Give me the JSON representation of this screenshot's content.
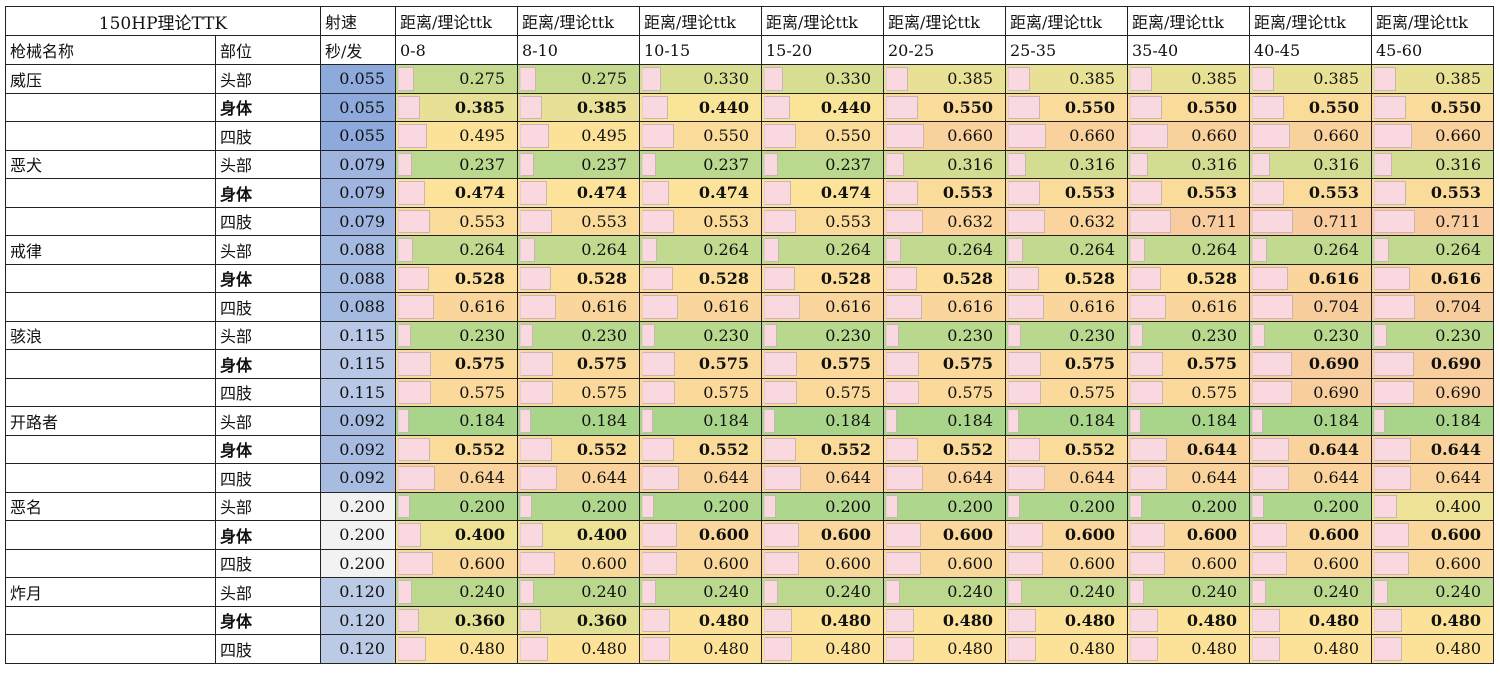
{
  "header": {
    "title": "150HP理论TTK",
    "speed_label": "射速",
    "speed_unit": "秒/发",
    "weapon_col": "枪械名称",
    "part_col": "部位",
    "dist_label": "距离/理论ttk",
    "ranges": [
      "0-8",
      "8-10",
      "10-15",
      "15-20",
      "20-25",
      "25-35",
      "35-40",
      "40-45",
      "45-60"
    ]
  },
  "colors": {
    "low": "#a9d58b",
    "mid": "#fde598",
    "high": "#f8cc9e",
    "speed_fast": "#8ea9db",
    "speed_slow": "#f2f2f2",
    "bar_fill": "#f9d9df"
  },
  "weapons": [
    {
      "name": "威压",
      "speed": "0.055",
      "rows": [
        {
          "part": "头部",
          "bold": false,
          "ttk": [
            "0.275",
            "0.275",
            "0.330",
            "0.330",
            "0.385",
            "0.385",
            "0.385",
            "0.385",
            "0.385"
          ]
        },
        {
          "part": "身体",
          "bold": true,
          "ttk": [
            "0.385",
            "0.385",
            "0.440",
            "0.440",
            "0.550",
            "0.550",
            "0.550",
            "0.550",
            "0.550"
          ]
        },
        {
          "part": "四肢",
          "bold": false,
          "ttk": [
            "0.495",
            "0.495",
            "0.550",
            "0.550",
            "0.660",
            "0.660",
            "0.660",
            "0.660",
            "0.660"
          ]
        }
      ]
    },
    {
      "name": "恶犬",
      "speed": "0.079",
      "rows": [
        {
          "part": "头部",
          "bold": false,
          "ttk": [
            "0.237",
            "0.237",
            "0.237",
            "0.237",
            "0.316",
            "0.316",
            "0.316",
            "0.316",
            "0.316"
          ]
        },
        {
          "part": "身体",
          "bold": true,
          "ttk": [
            "0.474",
            "0.474",
            "0.474",
            "0.474",
            "0.553",
            "0.553",
            "0.553",
            "0.553",
            "0.553"
          ]
        },
        {
          "part": "四肢",
          "bold": false,
          "ttk": [
            "0.553",
            "0.553",
            "0.553",
            "0.553",
            "0.632",
            "0.632",
            "0.711",
            "0.711",
            "0.711"
          ]
        }
      ]
    },
    {
      "name": "戒律",
      "speed": "0.088",
      "rows": [
        {
          "part": "头部",
          "bold": false,
          "ttk": [
            "0.264",
            "0.264",
            "0.264",
            "0.264",
            "0.264",
            "0.264",
            "0.264",
            "0.264",
            "0.264"
          ]
        },
        {
          "part": "身体",
          "bold": true,
          "ttk": [
            "0.528",
            "0.528",
            "0.528",
            "0.528",
            "0.528",
            "0.528",
            "0.528",
            "0.616",
            "0.616"
          ]
        },
        {
          "part": "四肢",
          "bold": false,
          "ttk": [
            "0.616",
            "0.616",
            "0.616",
            "0.616",
            "0.616",
            "0.616",
            "0.616",
            "0.704",
            "0.704"
          ]
        }
      ]
    },
    {
      "name": "骇浪",
      "speed": "0.115",
      "rows": [
        {
          "part": "头部",
          "bold": false,
          "ttk": [
            "0.230",
            "0.230",
            "0.230",
            "0.230",
            "0.230",
            "0.230",
            "0.230",
            "0.230",
            "0.230"
          ]
        },
        {
          "part": "身体",
          "bold": true,
          "ttk": [
            "0.575",
            "0.575",
            "0.575",
            "0.575",
            "0.575",
            "0.575",
            "0.575",
            "0.690",
            "0.690"
          ]
        },
        {
          "part": "四肢",
          "bold": false,
          "ttk": [
            "0.575",
            "0.575",
            "0.575",
            "0.575",
            "0.575",
            "0.575",
            "0.575",
            "0.690",
            "0.690"
          ]
        }
      ]
    },
    {
      "name": "开路者",
      "speed": "0.092",
      "rows": [
        {
          "part": "头部",
          "bold": false,
          "ttk": [
            "0.184",
            "0.184",
            "0.184",
            "0.184",
            "0.184",
            "0.184",
            "0.184",
            "0.184",
            "0.184"
          ]
        },
        {
          "part": "身体",
          "bold": true,
          "ttk": [
            "0.552",
            "0.552",
            "0.552",
            "0.552",
            "0.552",
            "0.552",
            "0.644",
            "0.644",
            "0.644"
          ]
        },
        {
          "part": "四肢",
          "bold": false,
          "ttk": [
            "0.644",
            "0.644",
            "0.644",
            "0.644",
            "0.644",
            "0.644",
            "0.644",
            "0.644",
            "0.644"
          ]
        }
      ]
    },
    {
      "name": "恶名",
      "speed": "0.200",
      "rows": [
        {
          "part": "头部",
          "bold": false,
          "ttk": [
            "0.200",
            "0.200",
            "0.200",
            "0.200",
            "0.200",
            "0.200",
            "0.200",
            "0.200",
            "0.400"
          ]
        },
        {
          "part": "身体",
          "bold": true,
          "ttk": [
            "0.400",
            "0.400",
            "0.600",
            "0.600",
            "0.600",
            "0.600",
            "0.600",
            "0.600",
            "0.600"
          ]
        },
        {
          "part": "四肢",
          "bold": false,
          "ttk": [
            "0.600",
            "0.600",
            "0.600",
            "0.600",
            "0.600",
            "0.600",
            "0.600",
            "0.600",
            "0.600"
          ]
        }
      ]
    },
    {
      "name": "炸月",
      "speed": "0.120",
      "rows": [
        {
          "part": "头部",
          "bold": false,
          "ttk": [
            "0.240",
            "0.240",
            "0.240",
            "0.240",
            "0.240",
            "0.240",
            "0.240",
            "0.240",
            "0.240"
          ]
        },
        {
          "part": "身体",
          "bold": true,
          "ttk": [
            "0.360",
            "0.360",
            "0.480",
            "0.480",
            "0.480",
            "0.480",
            "0.480",
            "0.480",
            "0.480"
          ]
        },
        {
          "part": "四肢",
          "bold": false,
          "ttk": [
            "0.480",
            "0.480",
            "0.480",
            "0.480",
            "0.480",
            "0.480",
            "0.480",
            "0.480",
            "0.480"
          ]
        }
      ]
    }
  ]
}
